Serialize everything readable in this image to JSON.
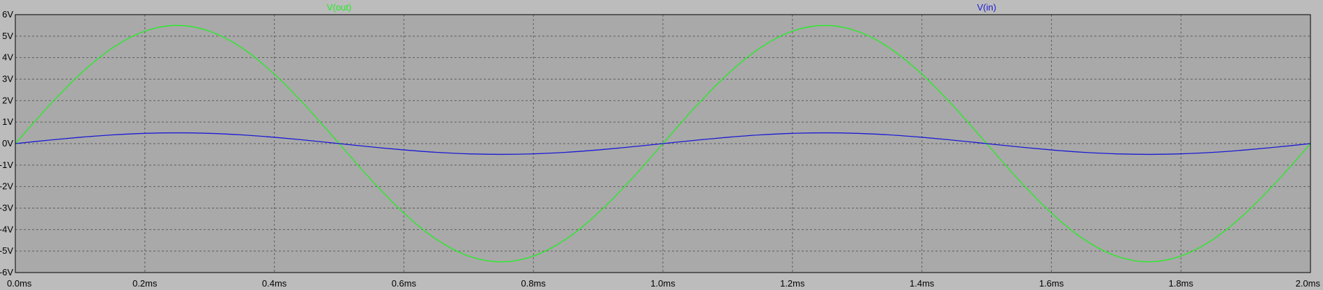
{
  "chart_data": {
    "type": "line",
    "title": "",
    "xlabel": "",
    "ylabel": "",
    "xlim": [
      0,
      2.0
    ],
    "ylim": [
      -6,
      6
    ],
    "grid": true,
    "legend_placement": "top",
    "x_tick_values": [
      0,
      0.2,
      0.4,
      0.6,
      0.8,
      1.0,
      1.2,
      1.4,
      1.6,
      1.8,
      2.0
    ],
    "x_tick_labels": [
      "0.0ms",
      "0.2ms",
      "0.4ms",
      "0.6ms",
      "0.8ms",
      "1.0ms",
      "1.2ms",
      "1.4ms",
      "1.6ms",
      "1.8ms",
      "2.0ms"
    ],
    "y_tick_values": [
      6,
      5,
      4,
      3,
      2,
      1,
      0,
      -1,
      -2,
      -3,
      -4,
      -5,
      -6
    ],
    "y_tick_labels": [
      "6V",
      "5V",
      "4V",
      "3V",
      "2V",
      "1V",
      "0V",
      "-1V",
      "-2V",
      "-3V",
      "-4V",
      "-5V",
      "-6V"
    ],
    "x": [
      0,
      0.05,
      0.1,
      0.15,
      0.2,
      0.25,
      0.3,
      0.35,
      0.4,
      0.45,
      0.5,
      0.55,
      0.6,
      0.65,
      0.7,
      0.75,
      0.8,
      0.85,
      0.9,
      0.95,
      1.0,
      1.05,
      1.1,
      1.15,
      1.2,
      1.25,
      1.3,
      1.35,
      1.4,
      1.45,
      1.5,
      1.55,
      1.6,
      1.65,
      1.7,
      1.75,
      1.8,
      1.85,
      1.9,
      1.95,
      2.0
    ],
    "series": [
      {
        "name": "V(out)",
        "color": "#22ee22",
        "values": [
          0,
          1.7,
          3.23,
          4.45,
          5.23,
          5.5,
          5.23,
          4.45,
          3.23,
          1.7,
          0,
          -1.7,
          -3.23,
          -4.45,
          -5.23,
          -5.5,
          -5.23,
          -4.45,
          -3.23,
          -1.7,
          0,
          1.7,
          3.23,
          4.45,
          5.23,
          5.5,
          5.23,
          4.45,
          3.23,
          1.7,
          0,
          -1.7,
          -3.23,
          -4.45,
          -5.23,
          -5.5,
          -5.23,
          -4.45,
          -3.23,
          -1.7,
          0
        ]
      },
      {
        "name": "V(in)",
        "color": "#1a1ad6",
        "values": [
          0,
          0.155,
          0.294,
          0.405,
          0.476,
          0.5,
          0.476,
          0.405,
          0.294,
          0.155,
          0,
          -0.155,
          -0.294,
          -0.405,
          -0.476,
          -0.5,
          -0.476,
          -0.405,
          -0.294,
          -0.155,
          0,
          0.155,
          0.294,
          0.405,
          0.476,
          0.5,
          0.476,
          0.405,
          0.294,
          0.155,
          0,
          -0.155,
          -0.294,
          -0.405,
          -0.476,
          -0.5,
          -0.476,
          -0.405,
          -0.294,
          -0.155,
          0
        ]
      }
    ]
  },
  "colors": {
    "page_background": "#bcbcbc",
    "plot_background": "#a9a9a9",
    "grid": "#5e5e5e",
    "frame": "#000000"
  }
}
